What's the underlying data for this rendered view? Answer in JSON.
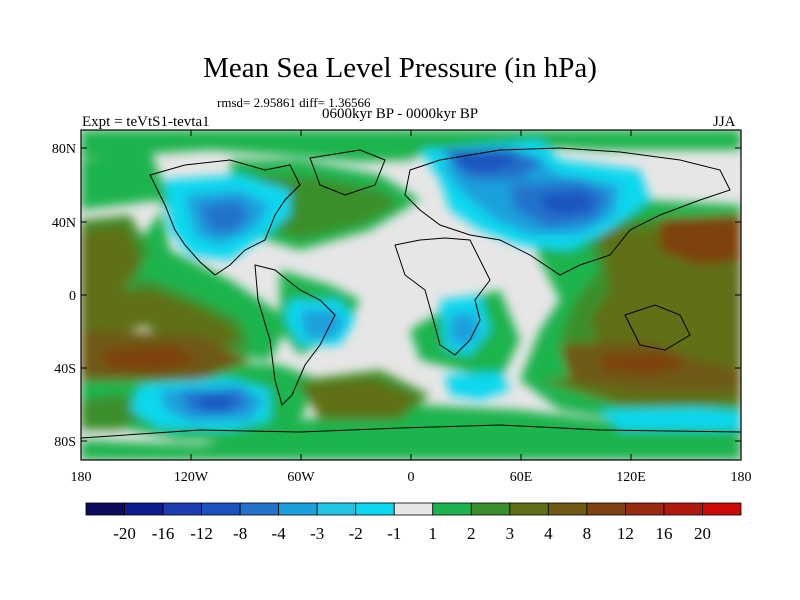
{
  "title": "Mean Sea Level Pressure (in hPa)",
  "stats": "rmsd= 2.95861 diff= 1.36566",
  "period": "0600kyr BP - 0000kyr BP",
  "experiment": "Expt = teVtS1-tevta1",
  "season": "JJA",
  "axes": {
    "lat_ticks": [
      "80N",
      "40N",
      "0",
      "40S",
      "80S"
    ],
    "lon_ticks": [
      "180",
      "120W",
      "60W",
      "0",
      "60E",
      "120E",
      "180"
    ]
  },
  "colorbar": {
    "labels": [
      "-20",
      "-16",
      "-12",
      "-8",
      "-4",
      "-3",
      "-2",
      "-1",
      "1",
      "2",
      "3",
      "4",
      "8",
      "12",
      "16",
      "20"
    ],
    "colors": [
      "#0b0b5e",
      "#0f1c8e",
      "#1d3cb0",
      "#1b53be",
      "#2372cc",
      "#1aa0dc",
      "#22c4e4",
      "#0ad8ee",
      "#e6e6e6",
      "#1db44d",
      "#3a8f2c",
      "#5f6f14",
      "#6e5a12",
      "#7d4311",
      "#972a10",
      "#b0190f",
      "#cc0a0a"
    ]
  }
}
